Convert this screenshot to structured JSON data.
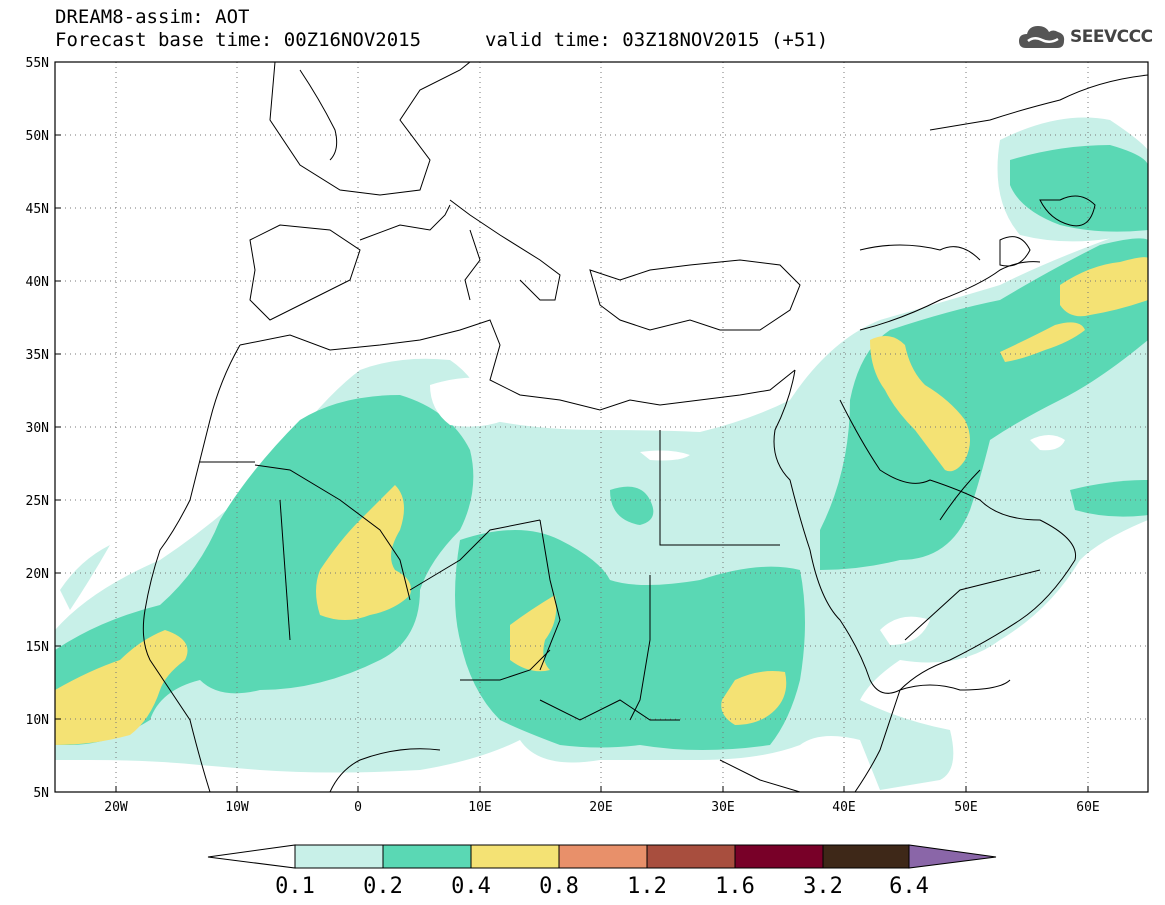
{
  "title": {
    "line1": "DREAM8-assim: AOT",
    "line2": "Forecast base time: 00Z16NOV2015",
    "valid": "valid time: 03Z18NOV2015 (+51)"
  },
  "logo": {
    "text": "SEEVCCC",
    "icon": "cloud-icon"
  },
  "map": {
    "lon_range": [
      -25,
      65
    ],
    "lat_range": [
      5,
      55
    ],
    "lat_ticks": [
      "5N",
      "10N",
      "15N",
      "20N",
      "25N",
      "30N",
      "35N",
      "40N",
      "45N",
      "50N",
      "55N"
    ],
    "lon_ticks": [
      "20W",
      "10W",
      "0",
      "10E",
      "20E",
      "30E",
      "40E",
      "50E",
      "60E"
    ],
    "grid": "dotted"
  },
  "colorbar": {
    "labels": [
      "0.1",
      "0.2",
      "0.4",
      "0.8",
      "1.2",
      "1.6",
      "3.2",
      "6.4"
    ],
    "colors": [
      "#ffffff",
      "#c8f0e8",
      "#5ad8b4",
      "#f4e274",
      "#e8906a",
      "#a84e3e",
      "#780028",
      "#3e2818",
      "#8a66a8"
    ]
  }
}
